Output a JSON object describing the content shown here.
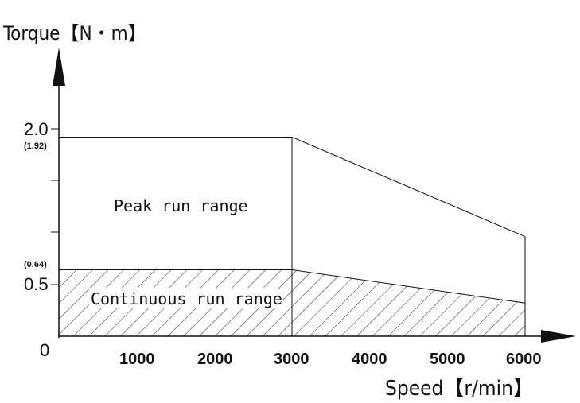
{
  "chart_data": {
    "type": "area",
    "ylabel": "Torque【N・m】",
    "xlabel": "Speed【r/min】",
    "x_ticks": [
      "0",
      "1000",
      "2000",
      "3000",
      "4000",
      "5000",
      "6000"
    ],
    "y_ticks": [
      "0.5",
      "2.0"
    ],
    "y_annotations": [
      "(1.92)",
      "(0.64)"
    ],
    "xlim": [
      0,
      6000
    ],
    "ylim": [
      0,
      2.0
    ],
    "series": [
      {
        "name": "Peak run range",
        "x": [
          0,
          3000,
          6000
        ],
        "y": [
          1.92,
          1.92,
          0.96
        ]
      },
      {
        "name": "Continuous run range",
        "x": [
          0,
          3000,
          6000
        ],
        "y": [
          0.64,
          0.64,
          0.32
        ]
      }
    ]
  }
}
